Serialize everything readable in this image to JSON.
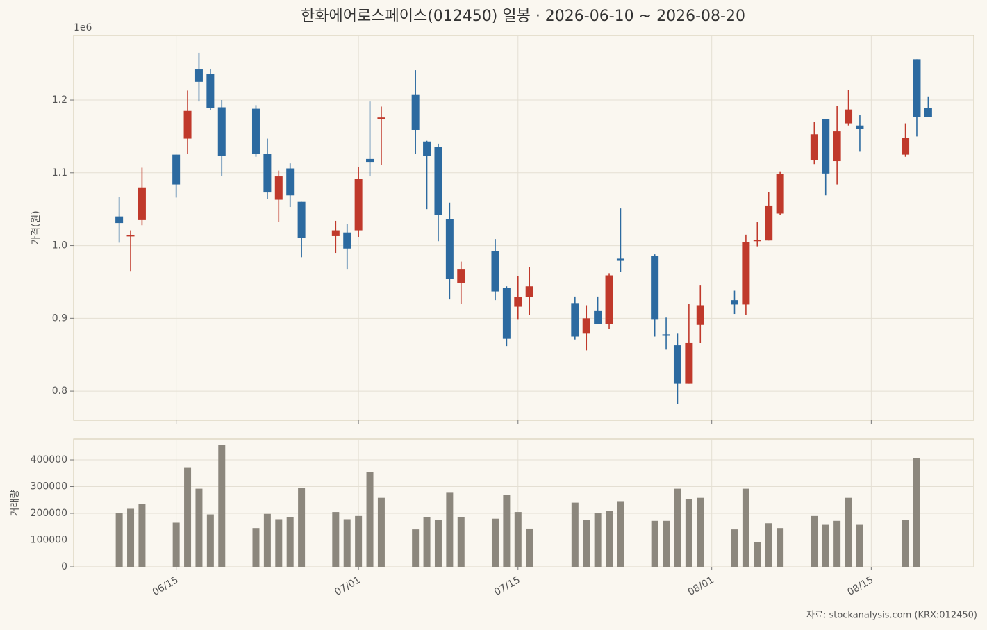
{
  "chart_data": [
    {
      "type": "candlestick",
      "title": "한화에어로스페이스(012450) 일봉 · 2026-06-10 ~ 2026-08-20",
      "y_offset_label": "1e6",
      "ylabel": "가격(원)",
      "x": [
        "06/10",
        "06/11",
        "06/12",
        "06/15",
        "06/16",
        "06/17",
        "06/18",
        "06/19",
        "06/22",
        "06/23",
        "06/24",
        "06/25",
        "06/26",
        "06/29",
        "06/30",
        "07/01",
        "07/02",
        "07/03",
        "07/06",
        "07/07",
        "07/08",
        "07/09",
        "07/10",
        "07/13",
        "07/14",
        "07/15",
        "07/16",
        "07/20",
        "07/21",
        "07/22",
        "07/23",
        "07/24",
        "07/27",
        "07/28",
        "07/29",
        "07/30",
        "07/31",
        "08/03",
        "08/04",
        "08/05",
        "08/06",
        "08/07",
        "08/10",
        "08/11",
        "08/12",
        "08/13",
        "08/14",
        "08/18",
        "08/19",
        "08/20"
      ],
      "open": [
        1040000,
        1013000,
        1035000,
        1125000,
        1147000,
        1242000,
        1236000,
        1190000,
        1188000,
        1126000,
        1063000,
        1106000,
        1060000,
        1013000,
        1018000,
        1021000,
        1119000,
        1174000,
        1207000,
        1143000,
        1136000,
        1036000,
        949000,
        992000,
        942000,
        916000,
        929000,
        921000,
        879000,
        910000,
        892000,
        982000,
        986000,
        878000,
        863000,
        810000,
        891000,
        925000,
        919000,
        1006000,
        1007000,
        1044000,
        1117000,
        1174000,
        1116000,
        1168000,
        1165000,
        1125000,
        1256000,
        1189000
      ],
      "high": [
        1067000,
        1021000,
        1107000,
        1125000,
        1213000,
        1265000,
        1243000,
        1200000,
        1193000,
        1147000,
        1103000,
        1113000,
        1060000,
        1034000,
        1030000,
        1108000,
        1198000,
        1191000,
        1241000,
        1144000,
        1140000,
        1059000,
        978000,
        1009000,
        944000,
        958000,
        971000,
        930000,
        918000,
        930000,
        962000,
        1051000,
        988000,
        901000,
        879000,
        920000,
        945000,
        938000,
        1015000,
        1032000,
        1074000,
        1102000,
        1170000,
        1174000,
        1192000,
        1214000,
        1179000,
        1168000,
        1256000,
        1205000
      ],
      "low": [
        1004000,
        965000,
        1028000,
        1066000,
        1126000,
        1198000,
        1186000,
        1095000,
        1122000,
        1064000,
        1032000,
        1053000,
        984000,
        990000,
        968000,
        1012000,
        1095000,
        1111000,
        1126000,
        1050000,
        1006000,
        926000,
        920000,
        925000,
        862000,
        899000,
        905000,
        871000,
        856000,
        892000,
        886000,
        964000,
        875000,
        857000,
        782000,
        810000,
        866000,
        906000,
        905000,
        999000,
        1007000,
        1042000,
        1112000,
        1069000,
        1084000,
        1165000,
        1129000,
        1122000,
        1150000,
        1177000
      ],
      "close": [
        1031000,
        1014000,
        1080000,
        1084000,
        1185000,
        1225000,
        1189000,
        1123000,
        1126000,
        1073000,
        1095000,
        1069000,
        1011000,
        1021000,
        996000,
        1092000,
        1115000,
        1176000,
        1159000,
        1123000,
        1042000,
        954000,
        968000,
        937000,
        872000,
        929000,
        944000,
        875000,
        900000,
        892000,
        959000,
        979000,
        899000,
        876000,
        810000,
        866000,
        918000,
        919000,
        1005000,
        1008000,
        1055000,
        1098000,
        1153000,
        1099000,
        1157000,
        1187000,
        1160000,
        1148000,
        1177000,
        1177000
      ],
      "up_color": "#c0392b",
      "down_color": "#2c6aa0",
      "ylim": [
        760000,
        1288800
      ],
      "yticks": [
        {
          "value": 800000,
          "label": "0.8"
        },
        {
          "value": 900000,
          "label": "0.9"
        },
        {
          "value": 1000000,
          "label": "1.0"
        },
        {
          "value": 1100000,
          "label": "1.1"
        },
        {
          "value": 1200000,
          "label": "1.2"
        }
      ],
      "xlim": [
        "06/06",
        "08/24"
      ],
      "xticks": [
        "06/15",
        "07/01",
        "07/15",
        "08/01",
        "08/15"
      ],
      "grid": true
    },
    {
      "type": "bar",
      "ylabel": "거래량",
      "annotation": "자료: stockanalysis.com (KRX:012450)",
      "values": [
        200000,
        217000,
        235000,
        165000,
        370000,
        292000,
        196000,
        455000,
        145000,
        198000,
        178000,
        185000,
        295000,
        205000,
        178000,
        190000,
        355000,
        258000,
        140000,
        185000,
        175000,
        277000,
        185000,
        180000,
        268000,
        205000,
        143000,
        240000,
        175000,
        200000,
        208000,
        243000,
        172000,
        172000,
        292000,
        253000,
        258000,
        140000,
        292000,
        92000,
        163000,
        145000,
        190000,
        157000,
        172000,
        258000,
        157000,
        175000,
        407000,
        null
      ],
      "color": "#8c877d",
      "ylim": [
        0,
        478000
      ],
      "yticks": [
        0,
        100000,
        200000,
        300000,
        400000
      ],
      "grid": true
    }
  ]
}
